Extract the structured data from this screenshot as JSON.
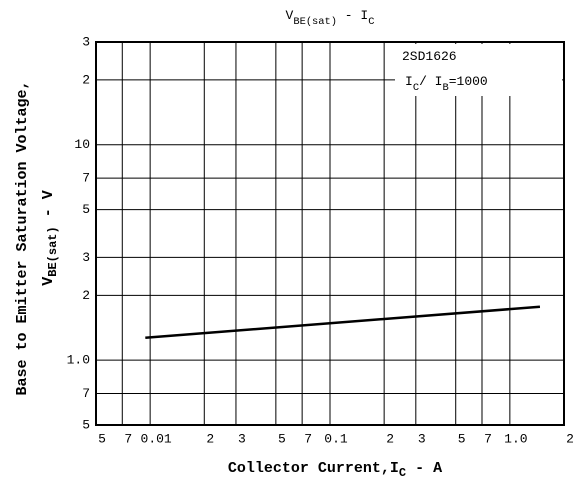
{
  "chart_data": {
    "type": "line",
    "title": [
      "V",
      "BE(sat)",
      " - I",
      "C"
    ],
    "x_label": [
      "Collector Current,I",
      "C",
      " - A"
    ],
    "y_label": [
      [
        "Base to Emitter Saturation Voltage,"
      ],
      [
        "V",
        "BE(sat)",
        " - V"
      ]
    ],
    "annotation": [
      [
        "2SD1626"
      ],
      [
        "I",
        "C",
        "/ I",
        "B",
        "=1000"
      ]
    ],
    "x": [
      0.0094,
      1.47
    ],
    "series": [
      {
        "color": "#000000",
        "values": [
          1.27,
          1.77
        ]
      }
    ],
    "xscale": "log",
    "yscale": "log",
    "grid": true,
    "xlim": [
      0.005,
      2
    ],
    "ylim": [
      0.5,
      30
    ],
    "xticks": [
      {
        "value": 0.005,
        "label": "5"
      },
      {
        "value": 0.007,
        "label": "7"
      },
      0.01,
      {
        "value": 0.02,
        "label": "2"
      },
      {
        "value": 0.03,
        "label": "3"
      },
      {
        "value": 0.05,
        "label": "5"
      },
      {
        "value": 0.07,
        "label": "7"
      },
      0.1,
      {
        "value": 0.2,
        "label": "2"
      },
      {
        "value": 0.3,
        "label": "3"
      },
      {
        "value": 0.5,
        "label": "5"
      },
      {
        "value": 0.7,
        "label": "7"
      },
      {
        "value": 1,
        "label": "1.0"
      },
      2
    ],
    "yticks": [
      {
        "value": 0.5,
        "label": "5"
      },
      {
        "value": 0.7,
        "label": "7"
      },
      {
        "value": 1,
        "label": "1.0"
      },
      2,
      3,
      5,
      7,
      10,
      {
        "value": 20,
        "label": "2"
      },
      {
        "value": 30,
        "label": "3"
      }
    ]
  }
}
